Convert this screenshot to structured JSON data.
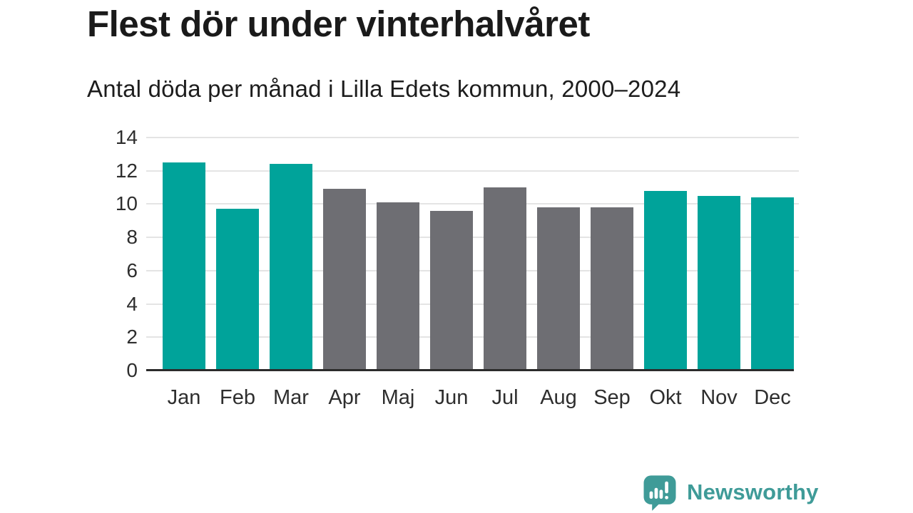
{
  "title": "Flest dör under vinterhalvåret",
  "subtitle": "Antal döda per månad i Lilla Edets kommun, 2000–2024",
  "chart_data": {
    "type": "bar",
    "categories": [
      "Jan",
      "Feb",
      "Mar",
      "Apr",
      "Maj",
      "Jun",
      "Jul",
      "Aug",
      "Sep",
      "Okt",
      "Nov",
      "Dec"
    ],
    "values": [
      12.5,
      9.7,
      12.4,
      10.9,
      10.1,
      9.6,
      11.0,
      9.8,
      9.8,
      10.8,
      10.5,
      10.4
    ],
    "bar_color_keys": [
      "highlight",
      "highlight",
      "highlight",
      "muted",
      "muted",
      "muted",
      "muted",
      "muted",
      "muted",
      "highlight",
      "highlight",
      "highlight"
    ],
    "title": "Flest dör under vinterhalvåret",
    "xlabel": "",
    "ylabel": "",
    "ylim": [
      0,
      14
    ],
    "y_ticks": [
      0,
      2,
      4,
      6,
      8,
      10,
      12,
      14
    ],
    "grid": true,
    "legend": "none",
    "colors": {
      "highlight": "#00a39a",
      "muted": "#6e6e73",
      "gridline": "#e4e4e4",
      "axis": "#2b2b2b",
      "tick_text": "#2e2e2e"
    }
  },
  "footer": {
    "brand": "Newsworthy",
    "brand_color": "#3f9b98",
    "logo_icon": "newsworthy-speech-bubble-bar-chart-icon"
  }
}
